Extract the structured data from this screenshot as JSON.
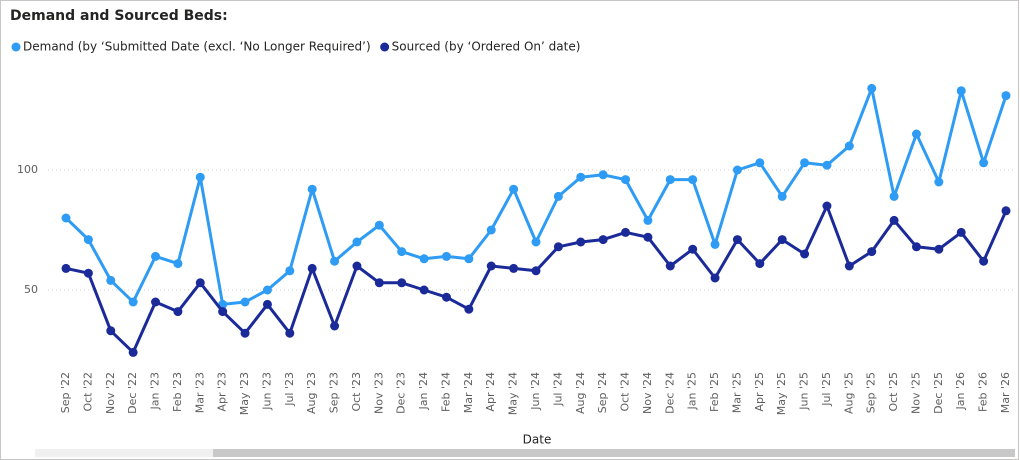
{
  "chart_data": {
    "type": "line",
    "title": "Demand and Sourced Beds:",
    "x_label": "Date",
    "categories": [
      "Sep '22",
      "Oct '22",
      "Nov '22",
      "Dec '22",
      "Jan '23",
      "Feb '23",
      "Mar '23",
      "Apr '23",
      "May '23",
      "Jun '23",
      "Jul '23",
      "Aug '23",
      "Sep '23",
      "Oct '23",
      "Nov '23",
      "Dec '23",
      "Jan '24",
      "Feb '24",
      "Mar '24",
      "Apr '24",
      "May '24",
      "Jun '24",
      "Jul '24",
      "Aug '24",
      "Sep '24",
      "Oct '24",
      "Nov '24",
      "Dec '24",
      "Jan '25",
      "Feb '25",
      "Mar '25",
      "Apr '25",
      "May '25",
      "Jun '25",
      "Jul '25",
      "Aug '25",
      "Sep '25",
      "Oct '25",
      "Nov '25",
      "Dec '25",
      "Jan '26",
      "Feb '26",
      "Mar '26"
    ],
    "series": [
      {
        "name": "Demand (by ‘Submitted Date (excl. ‘No Longer Required’)",
        "color": "#2e9cf4",
        "values": [
          80,
          71,
          54,
          45,
          64,
          61,
          97,
          44,
          45,
          50,
          58,
          92,
          62,
          70,
          77,
          66,
          63,
          64,
          63,
          75,
          92,
          70,
          89,
          97,
          98,
          96,
          79,
          96,
          96,
          69,
          100,
          103,
          89,
          103,
          102,
          110,
          134,
          89,
          115,
          95,
          133,
          103,
          131
        ]
      },
      {
        "name": "Sourced (by ‘Ordered On’ date)",
        "color": "#1b2a99",
        "values": [
          59,
          57,
          33,
          24,
          45,
          41,
          53,
          41,
          32,
          44,
          32,
          59,
          35,
          60,
          53,
          53,
          50,
          47,
          42,
          60,
          59,
          58,
          68,
          70,
          71,
          74,
          72,
          60,
          67,
          55,
          71,
          61,
          71,
          65,
          85,
          60,
          66,
          79,
          68,
          67,
          74,
          62,
          83
        ]
      }
    ],
    "ylim": [
      20,
      140
    ],
    "yticks": [
      50,
      100
    ],
    "grid": true
  }
}
